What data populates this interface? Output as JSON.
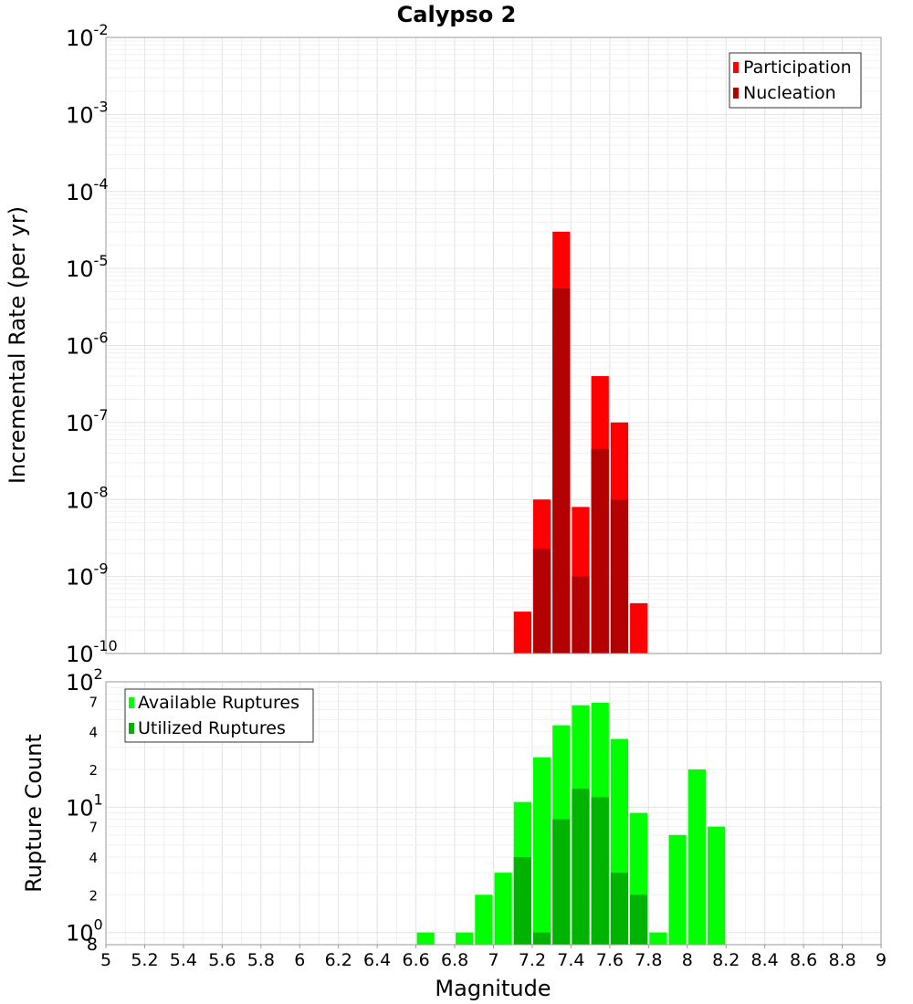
{
  "chart_data": [
    {
      "type": "bar",
      "title": "Calypso 2",
      "xlabel": "",
      "ylabel": "Incremental Rate (per yr)",
      "y_scale": "log",
      "ylim": [
        1e-10,
        0.01
      ],
      "xlim": [
        5,
        9
      ],
      "x_ticks": [
        "5",
        "5.2",
        "5.4",
        "5.6",
        "5.8",
        "6",
        "6.2",
        "6.4",
        "6.6",
        "6.8",
        "7",
        "7.2",
        "7.4",
        "7.6",
        "7.8",
        "8",
        "8.2",
        "8.4",
        "8.6",
        "8.8",
        "9"
      ],
      "y_tick_labels": [
        {
          "base": "10",
          "exp": "-2"
        },
        {
          "base": "10",
          "exp": "-3"
        },
        {
          "base": "10",
          "exp": "-4"
        },
        {
          "base": "10",
          "exp": "-5"
        },
        {
          "base": "10",
          "exp": "-6"
        },
        {
          "base": "10",
          "exp": "-7"
        },
        {
          "base": "10",
          "exp": "-8"
        },
        {
          "base": "10",
          "exp": "-9"
        },
        {
          "base": "10",
          "exp": "-10"
        }
      ],
      "grid": true,
      "legend_position": "top-right",
      "series": [
        {
          "name": "Participation",
          "color": "#ff0000",
          "x": [
            7.15,
            7.25,
            7.35,
            7.45,
            7.55,
            7.65,
            7.75
          ],
          "values": [
            3.5e-10,
            1e-08,
            3e-05,
            8e-09,
            4e-07,
            1e-07,
            4.5e-10
          ]
        },
        {
          "name": "Nucleation",
          "color": "#b30000",
          "x": [
            7.15,
            7.25,
            7.35,
            7.45,
            7.55,
            7.65
          ],
          "values": [
            1e-10,
            2.3e-09,
            5.5e-06,
            1e-09,
            4.5e-08,
            1e-08
          ]
        }
      ]
    },
    {
      "type": "bar",
      "title": "",
      "xlabel": "Magnitude",
      "ylabel": "Rupture Count",
      "y_scale": "log",
      "ylim": [
        0.8,
        100
      ],
      "xlim": [
        5,
        9
      ],
      "x_ticks": [
        "5",
        "5.2",
        "5.4",
        "5.6",
        "5.8",
        "6",
        "6.2",
        "6.4",
        "6.6",
        "6.8",
        "7",
        "7.2",
        "7.4",
        "7.6",
        "7.8",
        "8",
        "8.2",
        "8.4",
        "8.6",
        "8.8",
        "9"
      ],
      "y_tick_labels": [
        {
          "base": "10",
          "exp": "2"
        },
        {
          "base": "10",
          "exp": "1"
        },
        {
          "base": "10",
          "exp": "0"
        }
      ],
      "y_minor_labels": [
        "7",
        "4",
        "2",
        "7",
        "4",
        "2",
        "8"
      ],
      "grid": true,
      "legend_position": "top-left",
      "series": [
        {
          "name": "Available Ruptures",
          "color": "#00ff00",
          "x": [
            6.65,
            6.85,
            6.95,
            7.05,
            7.15,
            7.25,
            7.35,
            7.45,
            7.55,
            7.65,
            7.75,
            7.85,
            7.95,
            8.05,
            8.15
          ],
          "values": [
            1,
            1,
            2,
            3,
            11,
            25,
            45,
            65,
            68,
            35,
            9,
            1,
            6,
            20,
            7
          ]
        },
        {
          "name": "Utilized Ruptures",
          "color": "#00b300",
          "x": [
            7.15,
            7.25,
            7.35,
            7.45,
            7.55,
            7.65,
            7.75
          ],
          "values": [
            4,
            1,
            8,
            14,
            12,
            3,
            2
          ]
        }
      ]
    }
  ]
}
